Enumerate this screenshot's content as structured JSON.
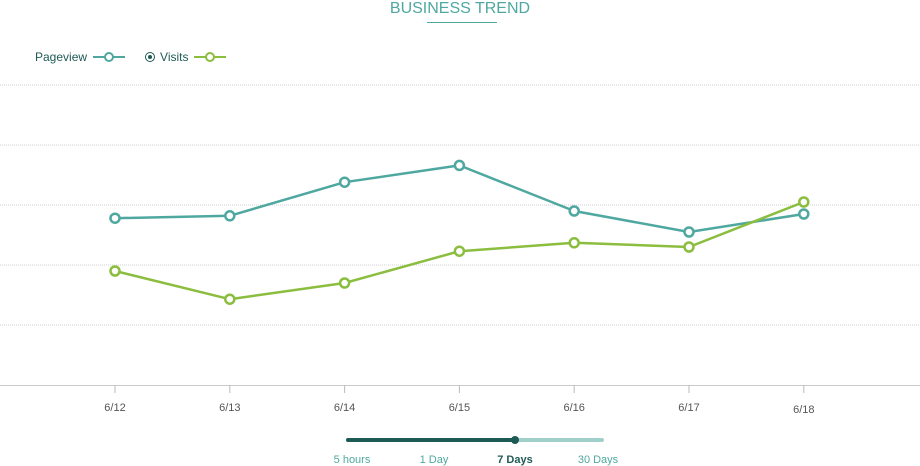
{
  "title": "BUSINESS TREND",
  "legend": {
    "pageview_label": "Pageview",
    "visits_label": "Visits"
  },
  "colors": {
    "pageview": "#4fa8a0",
    "visits": "#8bbd3f",
    "dark": "#1e5a55",
    "slider_track": "#9fd0ca"
  },
  "chart_data": {
    "type": "line",
    "categories": [
      "6/12",
      "6/13",
      "6/14",
      "6/15",
      "6/16",
      "6/17",
      "6/18"
    ],
    "series": [
      {
        "name": "Pageview",
        "values": [
          2.78,
          2.82,
          3.38,
          3.66,
          2.9,
          2.55,
          2.85
        ]
      },
      {
        "name": "Visits",
        "values": [
          1.9,
          1.43,
          1.7,
          2.23,
          2.37,
          2.3,
          3.05
        ]
      }
    ],
    "ylim": [
      0,
      5
    ],
    "grid": true,
    "legend_position": "top-left",
    "title": "BUSINESS TREND"
  },
  "range_selector": {
    "options": [
      "5 hours",
      "1 Day",
      "7 Days",
      "30 Days"
    ],
    "selected_index": 2
  }
}
